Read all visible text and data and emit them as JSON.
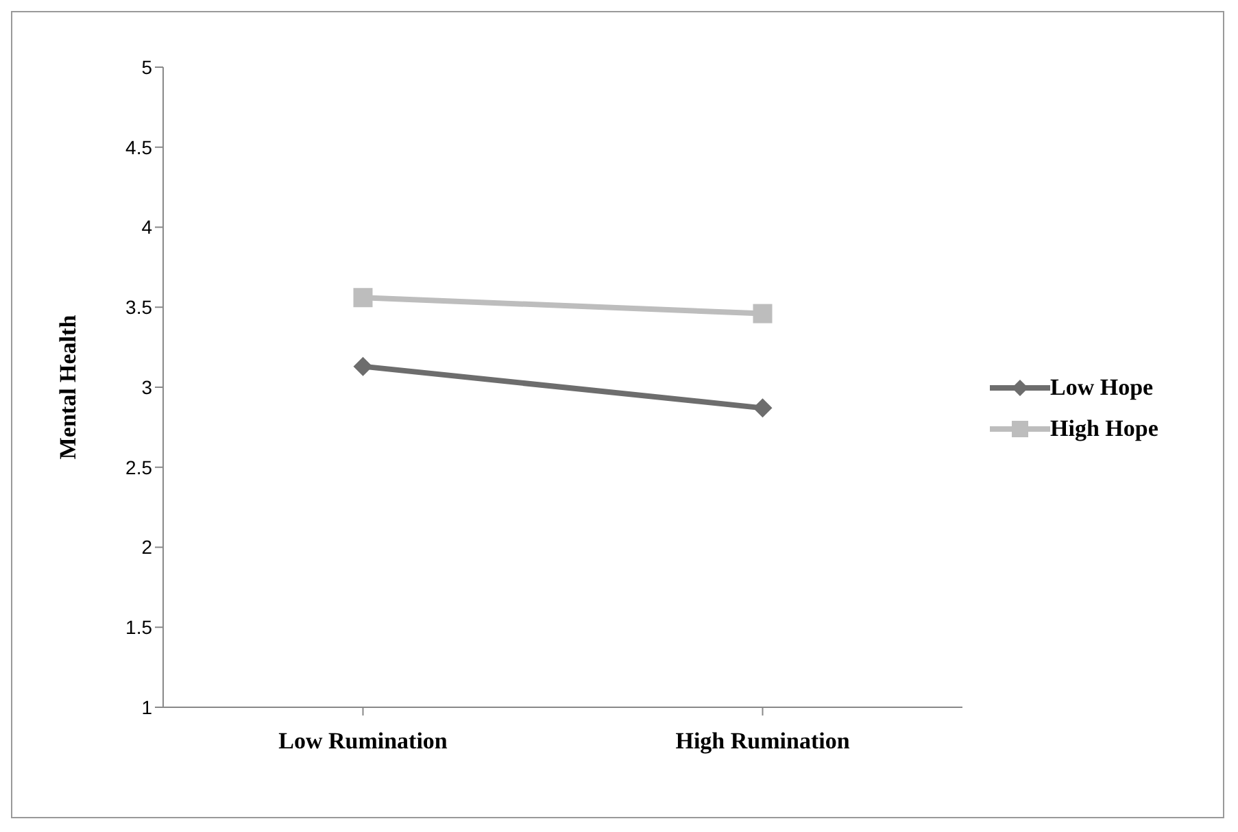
{
  "chart_data": {
    "type": "line",
    "ylabel": "Mental Health",
    "categories": [
      "Low Rumination",
      "High Rumination"
    ],
    "series": [
      {
        "name": "Low Hope",
        "color": "#6d6d6d",
        "marker": "diamond",
        "values": [
          3.13,
          2.87
        ]
      },
      {
        "name": "High Hope",
        "color": "#bdbdbd",
        "marker": "square",
        "values": [
          3.56,
          3.46
        ]
      }
    ],
    "ylim": [
      1,
      5
    ],
    "yticks": [
      1,
      1.5,
      2,
      2.5,
      3,
      3.5,
      4,
      4.5,
      5
    ],
    "grid": false,
    "legend": "right"
  }
}
